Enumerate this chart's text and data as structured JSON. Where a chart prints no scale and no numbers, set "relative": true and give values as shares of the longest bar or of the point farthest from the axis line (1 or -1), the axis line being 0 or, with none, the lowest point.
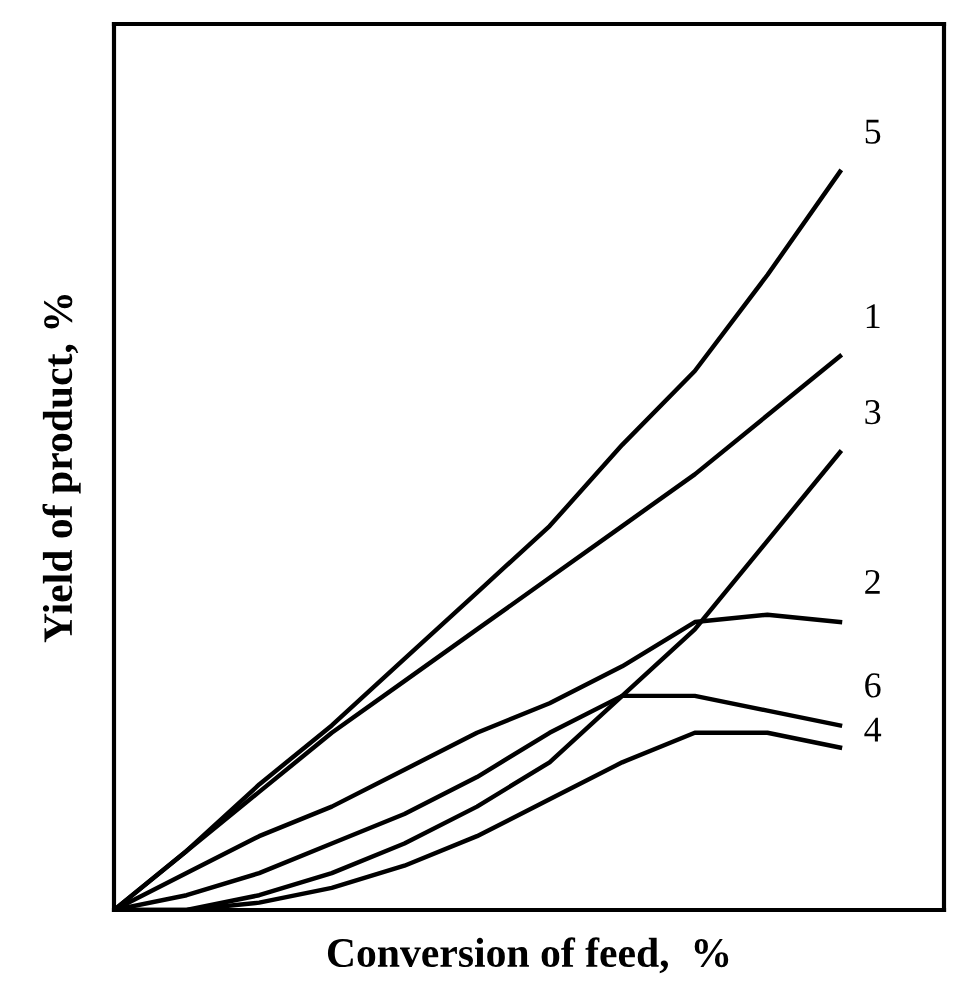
{
  "chart_data": {
    "type": "line",
    "relative": true,
    "xlabel": "Conversion of feed,  %",
    "ylabel": "Yield of product, %",
    "categories": [
      null,
      null,
      null,
      null,
      null,
      null,
      null,
      null,
      null,
      null,
      null
    ],
    "series": [
      {
        "name": "5",
        "color": "#000000",
        "values": [
          0,
          0.08,
          0.17,
          0.25,
          0.34,
          0.43,
          0.52,
          0.63,
          0.73,
          0.86,
          1
        ]
      },
      {
        "name": "1",
        "color": "#000000",
        "values": [
          0,
          0.08,
          0.16,
          0.24,
          0.31,
          0.38,
          0.45,
          0.52,
          0.59,
          0.67,
          0.75
        ]
      },
      {
        "name": "3",
        "color": "#000000",
        "values": [
          0,
          0,
          0.02,
          0.05,
          0.09,
          0.14,
          0.2,
          0.29,
          0.38,
          0.5,
          0.62
        ]
      },
      {
        "name": "2",
        "color": "#000000",
        "values": [
          0,
          0.05,
          0.1,
          0.14,
          0.19,
          0.24,
          0.28,
          0.33,
          0.39,
          0.4,
          0.39
        ]
      },
      {
        "name": "6",
        "color": "#000000",
        "values": [
          0,
          0.02,
          0.05,
          0.09,
          0.13,
          0.18,
          0.24,
          0.29,
          0.29,
          0.27,
          0.25
        ]
      },
      {
        "name": "4",
        "color": "#000000",
        "values": [
          0,
          0,
          0.01,
          0.03,
          0.06,
          0.1,
          0.15,
          0.2,
          0.24,
          0.24,
          0.22
        ]
      }
    ],
    "legend": false,
    "marker": "none",
    "line_style": "solid"
  }
}
